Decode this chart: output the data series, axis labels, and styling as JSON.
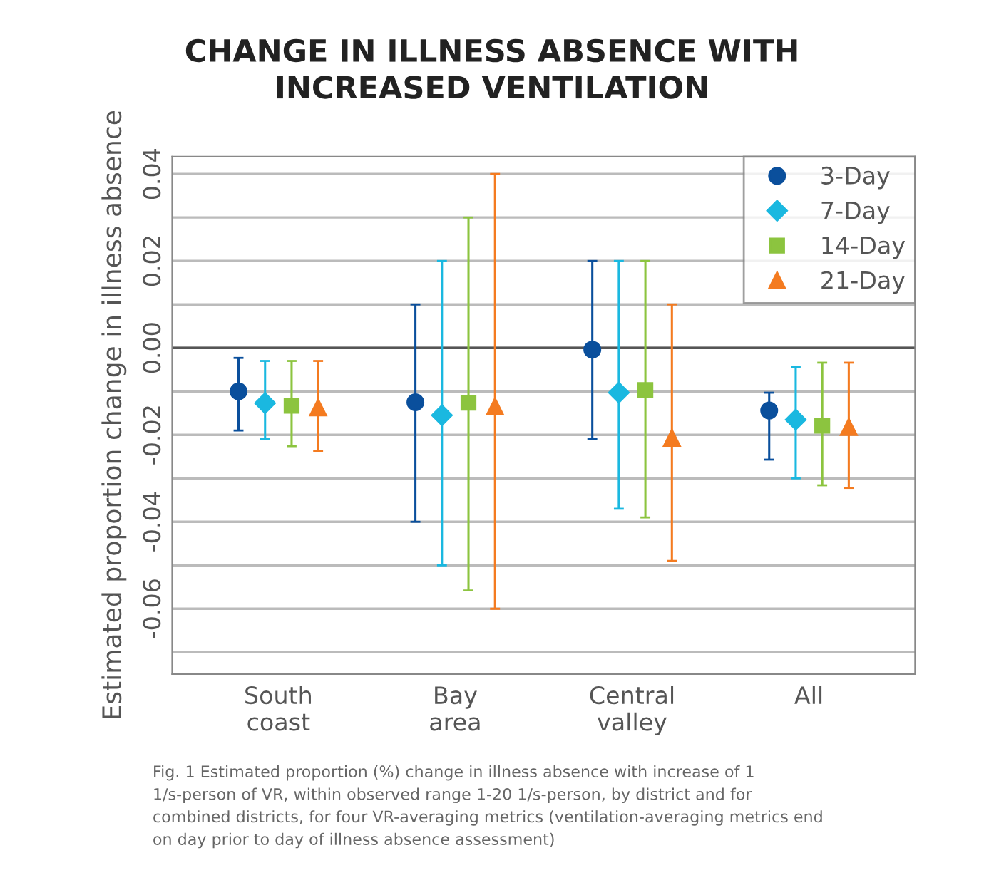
{
  "chart_data": {
    "type": "scatter",
    "title": "CHANGE IN ILLNESS ABSENCE WITH\nINCREASED VENTILATION",
    "ylabel": "Estimated proportion change in illness absence",
    "categories": [
      "South\ncoast",
      "Bay\narea",
      "Central\nvalley",
      "All"
    ],
    "series": [
      {
        "name": "3-Day",
        "color": "#0a4f9c",
        "marker": "circle",
        "values": [
          -0.01,
          -0.0125,
          -0.0004,
          -0.0144
        ],
        "errors": [
          [
            -0.019,
            -0.0023
          ],
          [
            -0.04,
            0.01
          ],
          [
            -0.021,
            0.02
          ],
          [
            -0.0257,
            -0.0103
          ]
        ]
      },
      {
        "name": "7-Day",
        "color": "#1ab8e0",
        "marker": "diamond",
        "values": [
          -0.0127,
          -0.0155,
          -0.0103,
          -0.0165
        ],
        "errors": [
          [
            -0.021,
            -0.003
          ],
          [
            -0.05,
            0.02
          ],
          [
            -0.037,
            0.02
          ],
          [
            -0.03,
            -0.0044
          ]
        ]
      },
      {
        "name": "14-Day",
        "color": "#8cc43f",
        "marker": "square",
        "values": [
          -0.0133,
          -0.0126,
          -0.0097,
          -0.0179
        ],
        "errors": [
          [
            -0.0226,
            -0.003
          ],
          [
            -0.0558,
            0.03
          ],
          [
            -0.039,
            0.02
          ],
          [
            -0.0316,
            -0.0034
          ]
        ]
      },
      {
        "name": "21-Day",
        "color": "#f47b20",
        "marker": "triangle",
        "values": [
          -0.0137,
          -0.0135,
          -0.0207,
          -0.0182
        ],
        "errors": [
          [
            -0.0237,
            -0.003
          ],
          [
            -0.06,
            0.04
          ],
          [
            -0.049,
            0.01
          ],
          [
            -0.0322,
            -0.0034
          ]
        ]
      }
    ],
    "ylim": [
      -0.075,
      0.044
    ],
    "yticks": [
      {
        "value": -0.07,
        "label": null
      },
      -0.06,
      {
        "value": -0.05,
        "label": null
      },
      -0.04,
      {
        "value": -0.03,
        "label": null
      },
      -0.02,
      {
        "value": -0.01,
        "label": null
      },
      {
        "value": 0,
        "label": "0.00"
      },
      {
        "value": 0.01,
        "label": null
      },
      0.02,
      {
        "value": 0.03,
        "label": null
      },
      0.04
    ],
    "ref_lines": [
      {
        "axis": "y",
        "value": 0,
        "color": "#555555"
      }
    ],
    "grid": "y",
    "legend": "top right",
    "annotations": [
      "Fig. 1 Estimated proportion (%) change in illness absence with increase of 1\n1/s-person of VR, within observed range 1-20 1/s-person, by district and for\ncombined districts, for four VR-averaging metrics (ventilation-averaging metrics end\non day prior to day of illness absence assessment)"
    ]
  }
}
